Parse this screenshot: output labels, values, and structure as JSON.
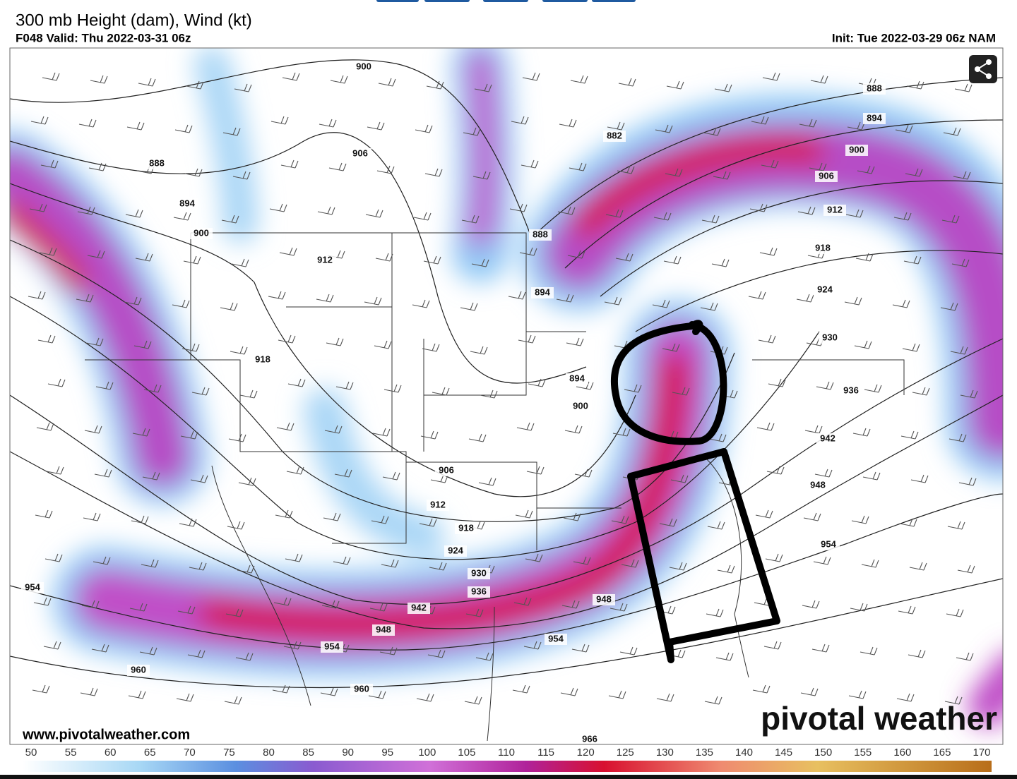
{
  "header": {
    "title": "300 mb Height (dam), Wind (kt)",
    "valid": "F048 Valid: Thu 2022-03-31 06z",
    "init": "Init: Tue 2022-03-29 06z NAM"
  },
  "map": {
    "contour_labels": [
      900,
      906,
      888,
      894,
      900,
      912,
      918,
      882,
      888,
      894,
      894,
      900,
      906,
      912,
      918,
      924,
      930,
      936,
      942,
      948,
      954,
      954,
      960,
      960,
      954,
      966,
      888,
      894,
      900,
      906,
      912,
      918,
      924,
      930,
      936,
      942,
      948,
      954,
      948
    ]
  },
  "footer": {
    "website": "www.pivotalweather.com",
    "logo": "pivotal weather"
  },
  "colorbar": {
    "ticks": [
      50,
      55,
      60,
      65,
      70,
      75,
      80,
      85,
      90,
      95,
      100,
      105,
      110,
      115,
      120,
      125,
      130,
      135,
      140,
      145,
      150,
      155,
      160,
      165,
      170
    ]
  }
}
